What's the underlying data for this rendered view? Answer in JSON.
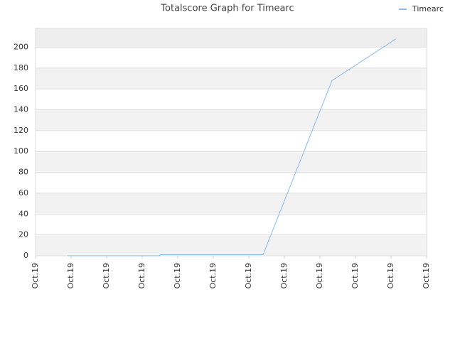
{
  "chart_data": {
    "type": "line",
    "title": "Totalscore Graph for Timearc",
    "x": [
      0.9,
      3.5,
      3.5,
      6.4,
      8.34,
      10.14
    ],
    "series": [
      {
        "name": "Timearc",
        "color": "#88bbee",
        "values": [
          0,
          0,
          1,
          1,
          168,
          208
        ]
      }
    ],
    "xlim": [
      0,
      11
    ],
    "xticks": [
      {
        "value": 0,
        "label": "Oct.19"
      },
      {
        "value": 1,
        "label": "Oct.19"
      },
      {
        "value": 2,
        "label": "Oct.19"
      },
      {
        "value": 3,
        "label": "Oct.19"
      },
      {
        "value": 4,
        "label": "Oct.19"
      },
      {
        "value": 5,
        "label": "Oct.19"
      },
      {
        "value": 6,
        "label": "Oct.19"
      },
      {
        "value": 7,
        "label": "Oct.19"
      },
      {
        "value": 8,
        "label": "Oct.19"
      },
      {
        "value": 9,
        "label": "Oct.19"
      },
      {
        "value": 10,
        "label": "Oct.19"
      },
      {
        "value": 11,
        "label": "Oct.19"
      }
    ],
    "ylim": [
      0,
      218
    ],
    "yticks": [
      0,
      20,
      40,
      60,
      80,
      100,
      120,
      140,
      160,
      180,
      200
    ],
    "grid": true,
    "legend": "top-right"
  }
}
